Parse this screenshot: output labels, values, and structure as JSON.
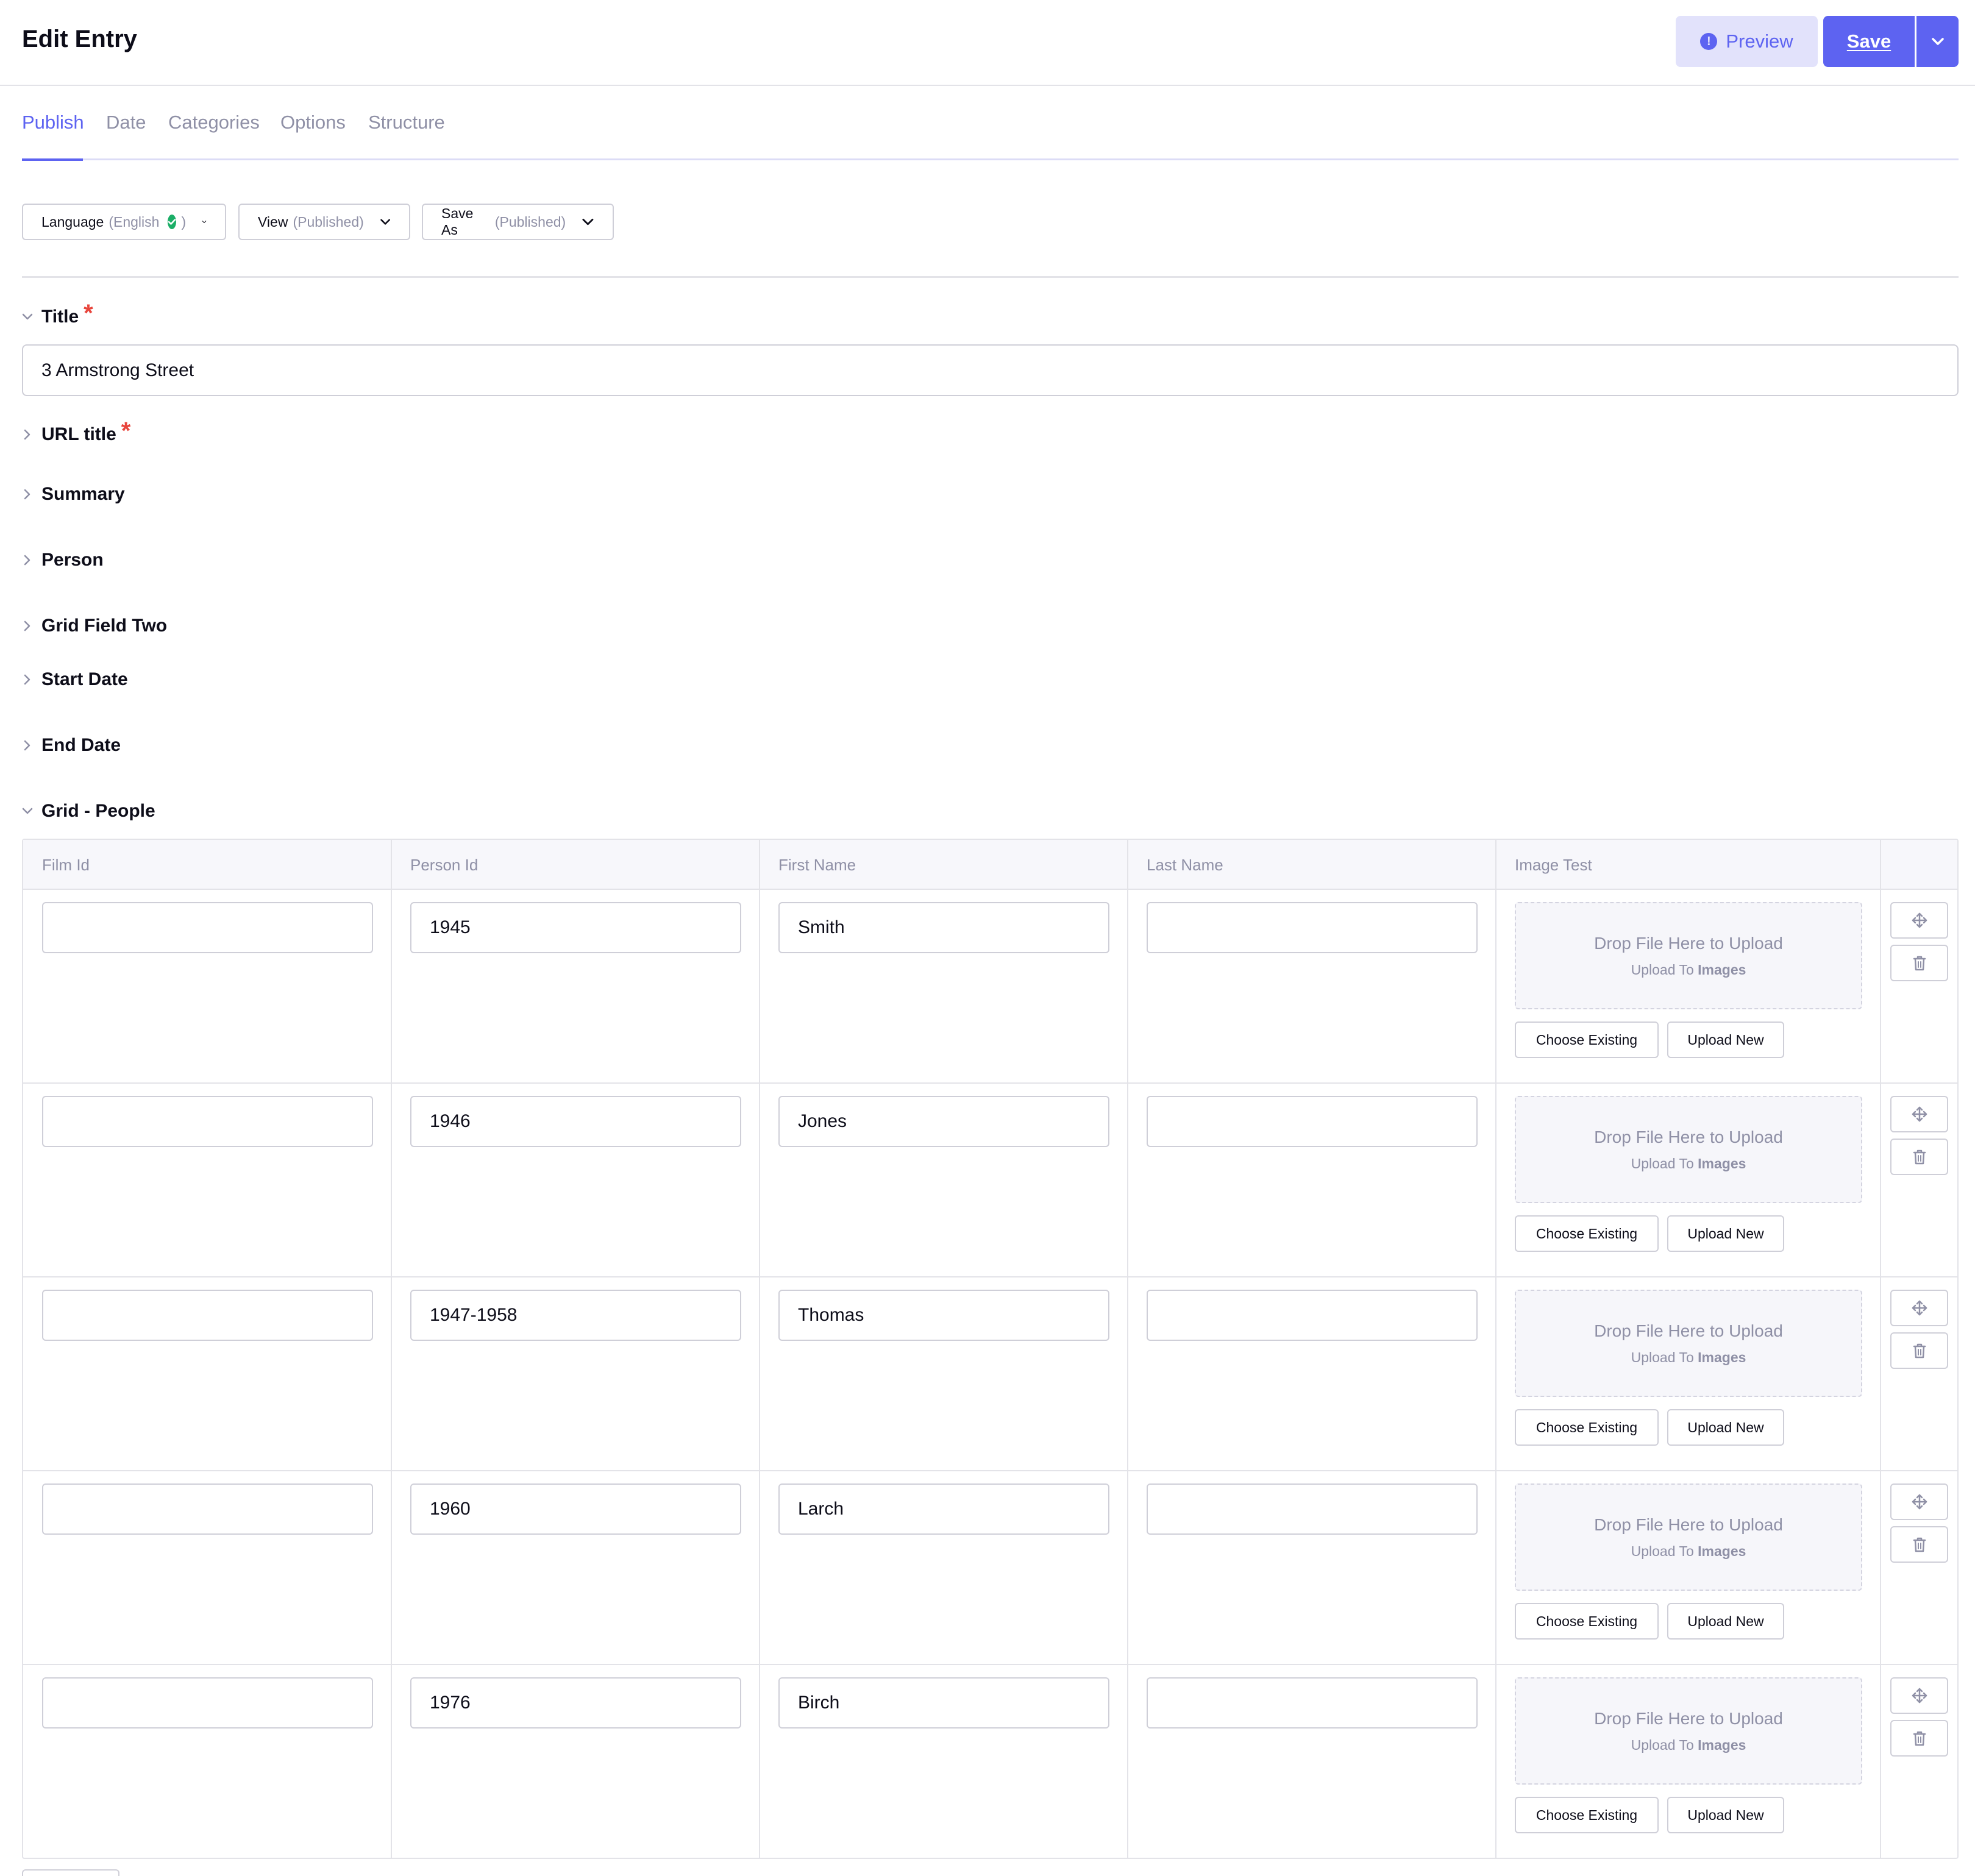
{
  "header": {
    "title": "Edit Entry",
    "preview_label": "Preview",
    "save_label": "Save"
  },
  "tabs": [
    {
      "label": "Publish",
      "active": true
    },
    {
      "label": "Date"
    },
    {
      "label": "Categories"
    },
    {
      "label": "Options"
    },
    {
      "label": "Structure"
    }
  ],
  "toolbar": {
    "language": {
      "label": "Language",
      "value": "(English",
      "close": ")"
    },
    "view": {
      "label": "View",
      "value": "(Published)"
    },
    "save_as": {
      "label": "Save As",
      "value": "(Published)"
    }
  },
  "fields": {
    "title": {
      "label": "Title",
      "value": "3 Armstrong Street",
      "required": true
    },
    "url_title": {
      "label": "URL title",
      "required": true
    },
    "summary": {
      "label": "Summary"
    },
    "person": {
      "label": "Person"
    },
    "grid_field_two": {
      "label": "Grid Field Two"
    },
    "start_date": {
      "label": "Start Date"
    },
    "end_date": {
      "label": "End Date"
    },
    "grid_people": {
      "label": "Grid - People"
    }
  },
  "grid": {
    "columns": [
      "Film Id",
      "Person Id",
      "First Name",
      "Last Name",
      "Image Test"
    ],
    "rows": [
      {
        "film_id": "",
        "person_id": "1945",
        "first_name": "Smith",
        "last_name": ""
      },
      {
        "film_id": "",
        "person_id": "1946",
        "first_name": "Jones",
        "last_name": ""
      },
      {
        "film_id": "",
        "person_id": "1947-1958",
        "first_name": "Thomas",
        "last_name": ""
      },
      {
        "film_id": "",
        "person_id": "1960",
        "first_name": "Larch",
        "last_name": ""
      },
      {
        "film_id": "",
        "person_id": "1976",
        "first_name": "Birch",
        "last_name": ""
      }
    ],
    "upload": {
      "drop_text": "Drop File Here to Upload",
      "upload_to_prefix": "Upload To",
      "upload_to_dir": "Images",
      "choose_existing": "Choose Existing",
      "upload_new": "Upload New"
    }
  },
  "colors": {
    "accent": "#5d63f1",
    "accent_light": "#e2e2fb",
    "required": "#e8453c",
    "success": "#1bae67",
    "muted_text": "#8f90a6"
  },
  "icons": {
    "preview": "alert-circle-icon",
    "save_menu": "chevron-down-icon",
    "collapsed": "chevron-right-icon",
    "expanded": "chevron-down-icon",
    "reorder": "move-icon",
    "delete": "trash-icon",
    "language_status": "check-circle-icon"
  }
}
